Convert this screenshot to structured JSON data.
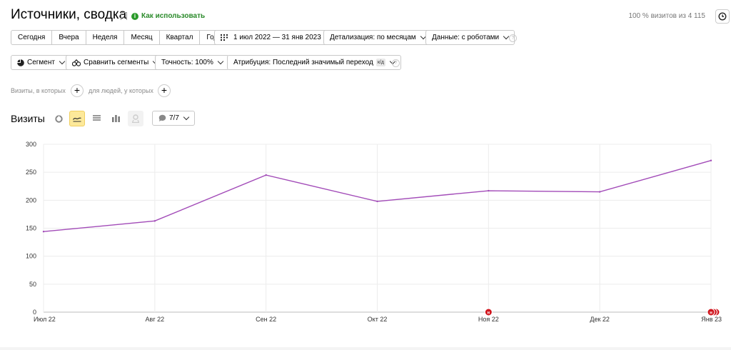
{
  "header": {
    "title": "Источники, сводка",
    "howto_label": "Как использовать",
    "sample_text": "100 % визитов из 4 115"
  },
  "period_presets": [
    "Сегодня",
    "Вчера",
    "Неделя",
    "Месяц",
    "Квартал",
    "Год"
  ],
  "toolbar": {
    "date_range": "1 июл 2022 — 31 янв 2023",
    "detail": "Детализация: по месяцам",
    "data_mode": "Данные: с роботами",
    "segment": "Сегмент",
    "compare": "Сравнить сегменты",
    "accuracy": "Точность: 100%",
    "attribution": "Атрибуция: Последний значимый переход",
    "attribution_badge": "к/д"
  },
  "filters": {
    "visits_label": "Визиты, в которых",
    "people_label": "для людей, у которых"
  },
  "chart_header": {
    "title": "Визиты",
    "annotations": "7/7"
  },
  "icons": {
    "bookmark": "bookmark-icon",
    "info": "info-icon",
    "history": "history-clock-icon",
    "calendar": "calendar-icon",
    "segment": "pie-segment-icon",
    "compare": "compare-segments-icon",
    "chart_pie": "pie-chart-icon",
    "chart_line": "line-chart-icon",
    "chart_area": "stacked-area-icon",
    "chart_bar": "bar-chart-icon",
    "chart_map": "map-pin-icon",
    "comment": "comment-icon"
  },
  "chart_data": {
    "type": "line",
    "title": "",
    "xlabel": "",
    "ylabel": "",
    "categories": [
      "Июл 22",
      "Авг 22",
      "Сен 22",
      "Окт 22",
      "Ноя 22",
      "Дек 22",
      "Янв 23"
    ],
    "series": [
      {
        "values": [
          144,
          163,
          245,
          198,
          217,
          215,
          271
        ],
        "color": "#a24bb8"
      }
    ],
    "ylim": [
      0,
      300
    ],
    "yticks": [
      0,
      50,
      100,
      150,
      200,
      250,
      300
    ],
    "grid": true,
    "annotation_markers": [
      {
        "x": "Ноя 22",
        "count": 1,
        "label": "н"
      },
      {
        "x": "Янв 23",
        "count": 3,
        "label": "н"
      }
    ],
    "marker_color": "#d0161e"
  }
}
